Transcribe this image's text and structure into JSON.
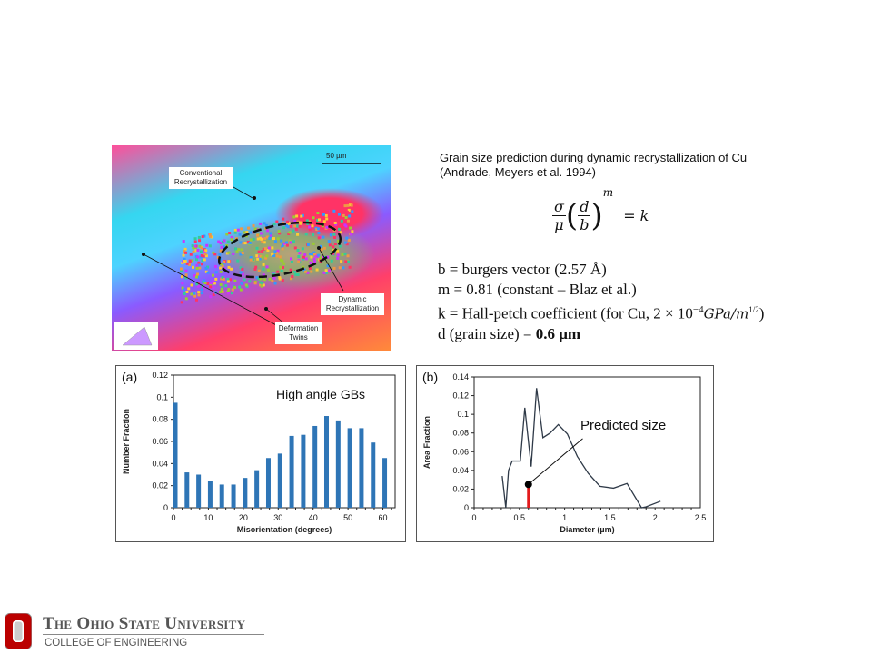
{
  "micrograph": {
    "scale_bar": "50 µm",
    "labels": {
      "conventional": "Conventional Recrystallization",
      "dynamic": "Dynamic Recrystallization",
      "twins": "Deformation Twins"
    }
  },
  "description": {
    "line1": "Grain size prediction during dynamic recrystallization of Cu",
    "line2": "(Andrade, Meyers et al. 1994)"
  },
  "equation": {
    "sigma": "σ",
    "mu": "μ",
    "d": "d",
    "b": "b",
    "m": "m",
    "rhs": "= k"
  },
  "params": {
    "b": "b = burgers vector (2.57 Å)",
    "m": "m = 0.81 (constant – Blaz et al.)",
    "k_prefix": "k = Hall-petch coefficient (for Cu, 2 × 10",
    "k_exp": "−4",
    "k_unit": "GPa/m",
    "k_pow": "1/2",
    "k_suffix": ")",
    "d_prefix": "d (grain size) = ",
    "d_value": "0.6 μm"
  },
  "chart_data": [
    {
      "type": "bar",
      "panel": "(a)",
      "annotation": "High angle GBs",
      "xlabel": "Misorientation (degrees)",
      "ylabel": "Number Fraction",
      "xlim": [
        0,
        63.5
      ],
      "ylim": [
        0,
        0.12
      ],
      "xticks": [
        0,
        10,
        20,
        30,
        40,
        50,
        60
      ],
      "yticks": [
        0,
        0.02,
        0.04,
        0.06,
        0.08,
        0.1,
        0.12
      ],
      "color": "#2e75b6",
      "x": [
        0,
        3.33,
        6.67,
        10,
        13.33,
        16.67,
        20,
        23.33,
        26.67,
        30,
        33.33,
        36.67,
        40,
        43.33,
        46.67,
        50,
        53.33,
        56.67,
        60
      ],
      "values": [
        0.095,
        0.032,
        0.03,
        0.024,
        0.021,
        0.021,
        0.027,
        0.034,
        0.045,
        0.049,
        0.065,
        0.066,
        0.074,
        0.083,
        0.079,
        0.072,
        0.072,
        0.059,
        0.045
      ]
    },
    {
      "type": "line",
      "panel": "(b)",
      "xlabel": "Diameter (µm)",
      "ylabel": "Area Fraction",
      "xlim": [
        0,
        2.5
      ],
      "ylim": [
        0,
        0.14
      ],
      "xticks": [
        0,
        0.5,
        1,
        1.5,
        2,
        2.5
      ],
      "yticks": [
        0,
        0.02,
        0.04,
        0.06,
        0.08,
        0.1,
        0.12,
        0.14
      ],
      "color": "#2f3a48",
      "x": [
        0.31,
        0.35,
        0.38,
        0.42,
        0.51,
        0.56,
        0.63,
        0.69,
        0.76,
        0.84,
        0.93,
        1.03,
        1.14,
        1.26,
        1.39,
        1.54,
        1.69,
        1.85,
        1.9,
        2.06
      ],
      "y": [
        0.034,
        0,
        0.04,
        0.05,
        0.05,
        0.107,
        0.044,
        0.128,
        0.075,
        0.08,
        0.089,
        0.079,
        0.055,
        0.037,
        0.023,
        0.021,
        0.026,
        0,
        0.001,
        0.007
      ],
      "marker": {
        "x": 0.6,
        "y": 0.025,
        "label": "Predicted size",
        "color": "#e31a1c"
      }
    }
  ],
  "footer": {
    "university": "The Ohio State University",
    "college": "COLLEGE OF ENGINEERING",
    "brand_color": "#bb0000"
  }
}
